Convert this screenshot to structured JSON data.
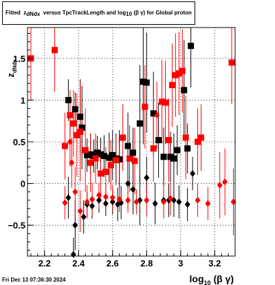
{
  "title": {
    "prefix": "Fitted",
    "var": "z",
    "var_sub": "dNdx",
    "mid": "versus TpcTrackLength and log",
    "log_sub": "10",
    "greek": "(β γ)",
    "suffix": "for Global proton"
  },
  "footer": "Fri Dec 13 07:36:30 2024",
  "chart_data": {
    "type": "scatter",
    "title": "Fitted z_dNdx versus TpcTrackLength and log10(β γ) for Global proton",
    "xlabel": "log10(β γ)",
    "ylabel": "z_dNdx",
    "xlim": [
      2.1,
      3.32
    ],
    "ylim": [
      -0.87,
      1.87
    ],
    "x_ticks": [
      2.2,
      2.4,
      2.6,
      2.8,
      3.0,
      3.2
    ],
    "x_tick_labels": [
      "2.2",
      "2.4",
      "2.6",
      "2.8",
      "3",
      "3.2"
    ],
    "y_ticks": [
      -0.5,
      0,
      0.5,
      1,
      1.5
    ],
    "y_tick_labels": [
      "−0.5",
      "0",
      "0.5",
      "1",
      "1.5"
    ],
    "grid": true,
    "legend": "none",
    "series": [
      {
        "name": "",
        "marker": "square",
        "color": "#000000",
        "points": [
          {
            "x": 2.34,
            "y": 1.0,
            "e": 0.25
          },
          {
            "x": 2.38,
            "y": 0.89,
            "e": 0.2
          },
          {
            "x": 2.41,
            "y": 0.8,
            "e": 0.45
          },
          {
            "x": 2.42,
            "y": 0.67,
            "e": 0.5
          },
          {
            "x": 2.45,
            "y": 0.34,
            "e": 0.2
          },
          {
            "x": 2.47,
            "y": 0.35,
            "e": 0.25
          },
          {
            "x": 2.49,
            "y": 0.33,
            "e": 0.2
          },
          {
            "x": 2.51,
            "y": 0.37,
            "e": 0.2
          },
          {
            "x": 2.53,
            "y": 0.35,
            "e": 0.2
          },
          {
            "x": 2.55,
            "y": 0.33,
            "e": 0.25
          },
          {
            "x": 2.58,
            "y": 0.31,
            "e": 0.3
          },
          {
            "x": 2.6,
            "y": 0.34,
            "e": 0.3
          },
          {
            "x": 2.62,
            "y": 0.3,
            "e": 0.3
          },
          {
            "x": 2.64,
            "y": 0.29,
            "e": 0.35
          },
          {
            "x": 2.69,
            "y": 0.45,
            "e": 0.4
          },
          {
            "x": 2.72,
            "y": 0.37,
            "e": 0.3
          },
          {
            "x": 2.76,
            "y": 0.72,
            "e": 0.7
          },
          {
            "x": 2.78,
            "y": 1.22,
            "e": 0.75
          },
          {
            "x": 2.8,
            "y": 1.21,
            "e": 0.6
          },
          {
            "x": 2.84,
            "y": 0.84,
            "e": 0.5
          },
          {
            "x": 2.87,
            "y": 0.52,
            "e": 0.45
          },
          {
            "x": 2.9,
            "y": 0.32,
            "e": 0.35
          },
          {
            "x": 2.94,
            "y": 0.32,
            "e": 0.3
          },
          {
            "x": 2.96,
            "y": 0.3,
            "e": 0.3
          },
          {
            "x": 2.98,
            "y": 0.4,
            "e": 0.3
          },
          {
            "x": 3.02,
            "y": 1.12,
            "e": 0.6
          },
          {
            "x": 3.06,
            "y": 1.65,
            "e": 0.5
          },
          {
            "x": 3.04,
            "y": 0.42,
            "e": 0.3
          }
        ]
      },
      {
        "name": "",
        "marker": "diamond",
        "color": "#000000",
        "points": [
          {
            "x": 2.34,
            "y": -0.17,
            "e": 0.25
          },
          {
            "x": 2.38,
            "y": -0.5,
            "e": 0.3
          },
          {
            "x": 2.37,
            "y": -0.85,
            "e": 0.2
          },
          {
            "x": 2.43,
            "y": -0.4,
            "e": 0.2
          },
          {
            "x": 2.45,
            "y": -0.25,
            "e": 0.15
          },
          {
            "x": 2.48,
            "y": -0.27,
            "e": 0.15
          },
          {
            "x": 2.52,
            "y": -0.2,
            "e": 0.15
          },
          {
            "x": 2.56,
            "y": -0.24,
            "e": 0.15
          },
          {
            "x": 2.6,
            "y": -0.22,
            "e": 0.15
          },
          {
            "x": 2.63,
            "y": -0.25,
            "e": 0.2
          },
          {
            "x": 2.65,
            "y": -0.23,
            "e": 0.2
          },
          {
            "x": 2.69,
            "y": 0.0,
            "e": 0.3
          },
          {
            "x": 2.72,
            "y": -0.07,
            "e": 0.3
          },
          {
            "x": 2.76,
            "y": -0.2,
            "e": 0.3
          },
          {
            "x": 2.8,
            "y": 0.07,
            "e": 0.25
          },
          {
            "x": 2.85,
            "y": -0.24,
            "e": 0.25
          },
          {
            "x": 2.9,
            "y": -0.2,
            "e": 0.2
          },
          {
            "x": 2.93,
            "y": -0.2,
            "e": 0.2
          },
          {
            "x": 2.96,
            "y": -0.2,
            "e": 0.2
          },
          {
            "x": 2.99,
            "y": -0.22,
            "e": 0.2
          },
          {
            "x": 3.04,
            "y": -0.25,
            "e": 0.2
          },
          {
            "x": 3.07,
            "y": 0.12,
            "e": 0.2
          }
        ]
      },
      {
        "name": "",
        "marker": "square",
        "color": "#ff0000",
        "points": [
          {
            "x": 2.12,
            "y": 1.5,
            "e": 0.5
          },
          {
            "x": 2.26,
            "y": 1.6,
            "e": 0.5
          },
          {
            "x": 2.32,
            "y": 0.45,
            "e": 0.4
          },
          {
            "x": 2.35,
            "y": 0.82,
            "e": 0.3
          },
          {
            "x": 2.37,
            "y": 0.72,
            "e": 0.4
          },
          {
            "x": 2.39,
            "y": 0.58,
            "e": 0.5
          },
          {
            "x": 2.41,
            "y": 0.62,
            "e": 0.6
          },
          {
            "x": 2.44,
            "y": 0.4,
            "e": 0.5
          },
          {
            "x": 2.47,
            "y": 0.25,
            "e": 0.35
          },
          {
            "x": 2.5,
            "y": 0.3,
            "e": 0.3
          },
          {
            "x": 2.53,
            "y": 0.12,
            "e": 0.3
          },
          {
            "x": 2.56,
            "y": 0.14,
            "e": 0.3
          },
          {
            "x": 2.59,
            "y": 0.22,
            "e": 0.3
          },
          {
            "x": 2.62,
            "y": 0.28,
            "e": 0.3
          },
          {
            "x": 2.66,
            "y": 0.55,
            "e": 0.4
          },
          {
            "x": 2.7,
            "y": 0.3,
            "e": 0.4
          },
          {
            "x": 2.73,
            "y": 0.27,
            "e": 0.4
          },
          {
            "x": 2.79,
            "y": 0.92,
            "e": 0.5
          },
          {
            "x": 2.84,
            "y": 0.42,
            "e": 0.4
          },
          {
            "x": 2.89,
            "y": 0.98,
            "e": 0.5
          },
          {
            "x": 2.91,
            "y": 0.97,
            "e": 0.5
          },
          {
            "x": 2.93,
            "y": 0.52,
            "e": 0.5
          },
          {
            "x": 2.95,
            "y": 1.18,
            "e": 0.5
          },
          {
            "x": 2.97,
            "y": 1.3,
            "e": 0.5
          },
          {
            "x": 2.99,
            "y": 1.32,
            "e": 0.5
          },
          {
            "x": 3.01,
            "y": 1.35,
            "e": 0.5
          },
          {
            "x": 3.03,
            "y": 0.55,
            "e": 0.5
          },
          {
            "x": 3.1,
            "y": 0.5,
            "e": 0.4
          },
          {
            "x": 3.12,
            "y": 0.55,
            "e": 0.4
          },
          {
            "x": 3.3,
            "y": 1.45,
            "e": 0.5
          }
        ]
      },
      {
        "name": "",
        "marker": "diamond",
        "color": "#ff0000",
        "points": [
          {
            "x": 2.32,
            "y": -0.23,
            "e": 0.2
          },
          {
            "x": 2.35,
            "y": 0.5,
            "e": 0.3
          },
          {
            "x": 2.36,
            "y": 0.25,
            "e": 0.3
          },
          {
            "x": 2.38,
            "y": -0.1,
            "e": 0.3
          },
          {
            "x": 2.41,
            "y": -0.33,
            "e": 0.25
          },
          {
            "x": 2.45,
            "y": -0.22,
            "e": 0.2
          },
          {
            "x": 2.48,
            "y": -0.19,
            "e": 0.2
          },
          {
            "x": 2.52,
            "y": -0.14,
            "e": 0.15
          },
          {
            "x": 2.56,
            "y": -0.16,
            "e": 0.15
          },
          {
            "x": 2.6,
            "y": -0.17,
            "e": 0.15
          },
          {
            "x": 2.64,
            "y": -0.19,
            "e": 0.15
          },
          {
            "x": 2.69,
            "y": -0.2,
            "e": 0.15
          },
          {
            "x": 2.74,
            "y": -0.22,
            "e": 0.15
          },
          {
            "x": 2.8,
            "y": -0.2,
            "e": 0.2
          },
          {
            "x": 2.86,
            "y": 0.82,
            "e": 0.4
          },
          {
            "x": 2.9,
            "y": -0.22,
            "e": 0.2
          },
          {
            "x": 2.94,
            "y": -0.18,
            "e": 0.2
          },
          {
            "x": 3.1,
            "y": -0.2,
            "e": 0.2
          },
          {
            "x": 3.16,
            "y": -0.24,
            "e": 0.2
          },
          {
            "x": 3.23,
            "y": -0.02,
            "e": 0.4
          },
          {
            "x": 3.26,
            "y": 0.02,
            "e": 0.4
          },
          {
            "x": 3.31,
            "y": -0.22,
            "e": 0.4
          }
        ]
      }
    ]
  }
}
